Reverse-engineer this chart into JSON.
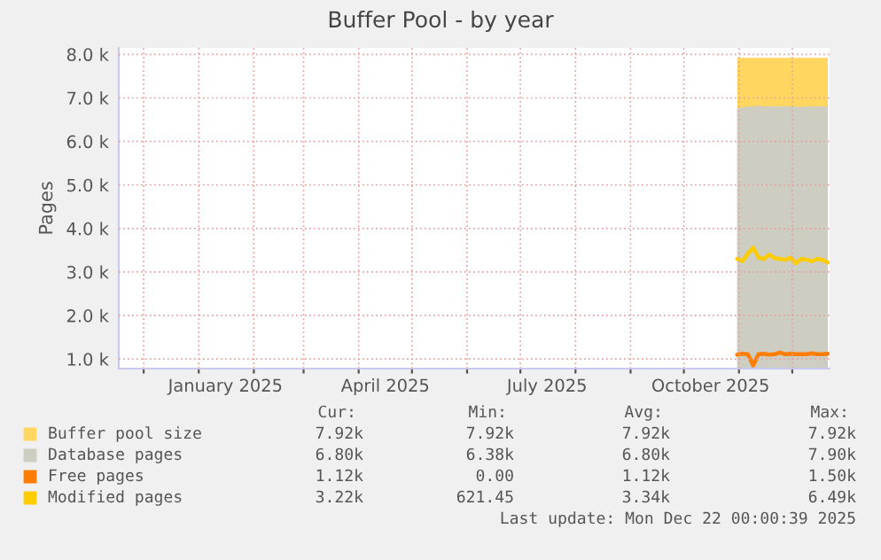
{
  "chart_data": {
    "type": "area",
    "title": "Buffer Pool - by year",
    "ylabel": "Pages",
    "x": [
      "2025-10-31",
      "2025-11-03",
      "2025-11-06",
      "2025-11-09",
      "2025-11-12",
      "2025-11-15",
      "2025-11-18",
      "2025-11-21",
      "2025-11-24",
      "2025-11-27",
      "2025-11-30",
      "2025-12-03",
      "2025-12-06",
      "2025-12-09",
      "2025-12-12",
      "2025-12-15",
      "2025-12-18",
      "2025-12-21"
    ],
    "series": [
      {
        "name": "Buffer pool size",
        "color": "#ffd660",
        "values": [
          7920,
          7920,
          7920,
          7920,
          7920,
          7920,
          7920,
          7920,
          7920,
          7920,
          7920,
          7920,
          7920,
          7920,
          7920,
          7920,
          7920,
          7920
        ]
      },
      {
        "name": "Database pages",
        "color": "#cdcdc1",
        "values": [
          6760,
          6780,
          6800,
          6800,
          6820,
          6800,
          6810,
          6800,
          6800,
          6810,
          6800,
          6800,
          6790,
          6800,
          6800,
          6810,
          6800,
          6800
        ]
      },
      {
        "name": "Free pages",
        "type": "line",
        "color": "#ff7d00",
        "values": [
          1100,
          1120,
          1110,
          850,
          1110,
          1120,
          1100,
          1110,
          1150,
          1110,
          1120,
          1110,
          1110,
          1110,
          1130,
          1110,
          1110,
          1120
        ]
      },
      {
        "name": "Modified pages",
        "type": "line",
        "color": "#ffcc00",
        "values": [
          3300,
          3250,
          3420,
          3560,
          3330,
          3300,
          3400,
          3320,
          3300,
          3280,
          3330,
          3200,
          3300,
          3280,
          3250,
          3300,
          3280,
          3220
        ]
      }
    ],
    "xlim": [
      "2024-11-17",
      "2025-12-22"
    ],
    "xticks": [
      {
        "value": "2024-12-01",
        "label": null
      },
      {
        "value": "2025-01-01",
        "label": null
      },
      {
        "value": "2025-01-16",
        "label": "January 2025"
      },
      {
        "value": "2025-02-01",
        "label": null
      },
      {
        "value": "2025-03-01",
        "label": null
      },
      {
        "value": "2025-04-01",
        "label": null
      },
      {
        "value": "2025-04-16",
        "label": "April 2025"
      },
      {
        "value": "2025-05-01",
        "label": null
      },
      {
        "value": "2025-06-01",
        "label": null
      },
      {
        "value": "2025-07-01",
        "label": null
      },
      {
        "value": "2025-07-16",
        "label": "July 2025"
      },
      {
        "value": "2025-08-01",
        "label": null
      },
      {
        "value": "2025-09-01",
        "label": null
      },
      {
        "value": "2025-10-01",
        "label": null
      },
      {
        "value": "2025-10-16",
        "label": "October 2025"
      },
      {
        "value": "2025-11-01",
        "label": null
      },
      {
        "value": "2025-12-01",
        "label": null
      }
    ],
    "ylim": [
      780,
      8150
    ],
    "yticks": [
      {
        "value": 1000,
        "label": "1.0 k"
      },
      {
        "value": 2000,
        "label": "2.0 k"
      },
      {
        "value": 3000,
        "label": "3.0 k"
      },
      {
        "value": 4000,
        "label": "4.0 k"
      },
      {
        "value": 5000,
        "label": "5.0 k"
      },
      {
        "value": 6000,
        "label": "6.0 k"
      },
      {
        "value": 7000,
        "label": "7.0 k"
      },
      {
        "value": 8000,
        "label": "8.0 k"
      }
    ],
    "grid": true,
    "legend": "bottom",
    "annotations": [
      "Cur:",
      "Min:",
      "Avg:",
      "Max:",
      "7.92k",
      "7.92k",
      "7.92k",
      "7.92k",
      "6.80k",
      "6.38k",
      "6.80k",
      "7.90k",
      "1.12k",
      "0.00",
      "1.12k",
      "1.50k",
      "3.22k",
      "621.45",
      "3.34k",
      "6.49k",
      "Last update: Mon Dec 22 00:00:39 2025"
    ]
  }
}
